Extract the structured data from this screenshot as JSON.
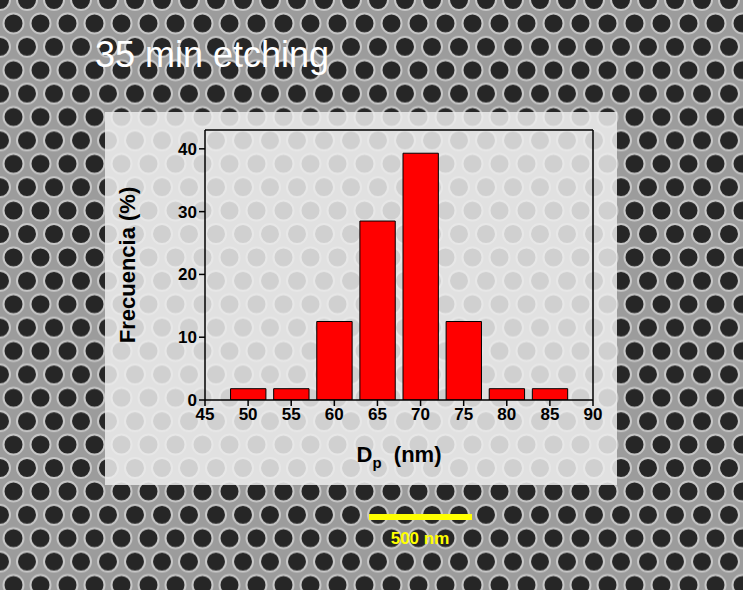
{
  "chart_data": {
    "type": "histogram",
    "title": "35 min etching",
    "x_label": "Dp (nm)",
    "y_label": "Frecuencia (%)",
    "bins": [
      47.5,
      52.5,
      57.5,
      62.5,
      67.5,
      72.5,
      77.5,
      82.5,
      87.5
    ],
    "values": [
      1.8,
      1.8,
      12.5,
      28.5,
      39.3,
      12.5,
      1.8,
      1.8
    ],
    "color": "#ff0000",
    "xlim": [
      45,
      90
    ],
    "xticks": [
      45,
      50,
      55,
      60,
      65,
      70,
      75,
      80,
      85,
      90
    ],
    "ylim": [
      0,
      43
    ],
    "yticks": [
      0,
      10,
      20,
      30,
      40
    ],
    "grid": false,
    "annotations": [
      "500 nm"
    ]
  }
}
